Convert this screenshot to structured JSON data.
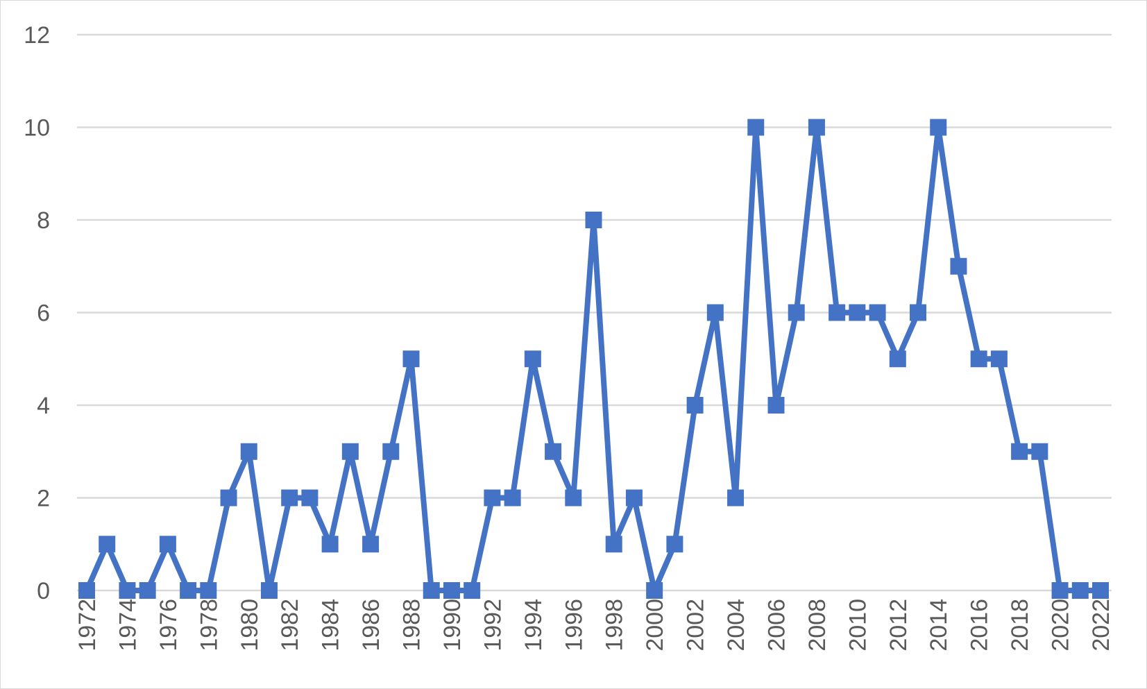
{
  "chart_data": {
    "type": "line",
    "title": "",
    "xlabel": "",
    "ylabel": "",
    "ylim": [
      0,
      12
    ],
    "yticks": [
      0,
      2,
      4,
      6,
      8,
      10,
      12
    ],
    "xtick_labels": [
      "1972",
      "1974",
      "1976",
      "1978",
      "1980",
      "1982",
      "1984",
      "1986",
      "1988",
      "1990",
      "1992",
      "1994",
      "1996",
      "1998",
      "2000",
      "2002",
      "2004",
      "2006",
      "2008",
      "2010",
      "2012",
      "2014",
      "2016",
      "2018",
      "2020",
      "2022"
    ],
    "grid": true,
    "legend": "none",
    "color": "#4472c4",
    "marker": "square",
    "x": [
      1972,
      1973,
      1974,
      1975,
      1976,
      1977,
      1978,
      1979,
      1980,
      1981,
      1982,
      1983,
      1984,
      1985,
      1986,
      1987,
      1988,
      1989,
      1990,
      1991,
      1992,
      1993,
      1994,
      1995,
      1996,
      1997,
      1998,
      1999,
      2000,
      2001,
      2002,
      2003,
      2004,
      2005,
      2006,
      2007,
      2008,
      2009,
      2010,
      2011,
      2012,
      2013,
      2014,
      2015,
      2016,
      2017,
      2018,
      2019,
      2020,
      2021,
      2022
    ],
    "series": [
      {
        "values": [
          0,
          1,
          0,
          0,
          1,
          0,
          0,
          2,
          3,
          0,
          2,
          2,
          1,
          3,
          1,
          3,
          5,
          0,
          0,
          0,
          2,
          2,
          5,
          3,
          2,
          8,
          1,
          2,
          0,
          1,
          4,
          6,
          2,
          10,
          4,
          6,
          10,
          6,
          6,
          6,
          5,
          6,
          10,
          7,
          5,
          5,
          3,
          3,
          0,
          0,
          0
        ]
      }
    ]
  }
}
